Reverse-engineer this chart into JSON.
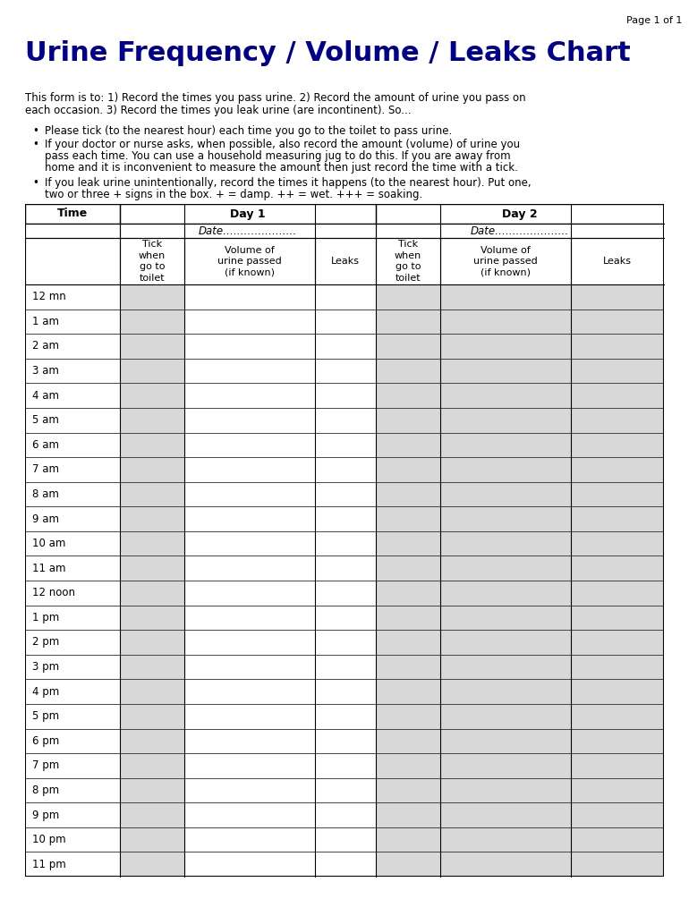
{
  "title": "Urine Frequency / Volume / Leaks Chart",
  "title_color": "#00008B",
  "title_fontsize": 22,
  "page_label": "Page 1 of 1",
  "intro_line1": "This form is to: 1) Record the times you pass urine. 2) Record the amount of urine you pass on",
  "intro_line2": "each occasion. 3) Record the times you leak urine (are incontinent). So...",
  "bullet1": "Please tick (to the nearest hour) each time you go to the toilet to pass urine.",
  "bullet2a": "If your doctor or nurse asks, when possible, also record the amount (volume) of urine you",
  "bullet2b": "pass each time. You can use a household measuring jug to do this. If you are away from",
  "bullet2c": "home and it is inconvenient to measure the amount then just record the time with a tick.",
  "bullet3a": "If you leak urine unintentionally, record the times it happens (to the nearest hour). Put one,",
  "bullet3b": "two or three + signs in the box. + = damp. ++ = wet. +++ = soaking.",
  "time_rows": [
    "12 mn",
    "1 am",
    "2 am",
    "3 am",
    "4 am",
    "5 am",
    "6 am",
    "7 am",
    "8 am",
    "9 am",
    "10 am",
    "11 am",
    "12 noon",
    "1 pm",
    "2 pm",
    "3 pm",
    "4 pm",
    "5 pm",
    "6 pm",
    "7 pm",
    "8 pm",
    "9 pm",
    "10 pm",
    "11 pm"
  ],
  "background_color": "#ffffff",
  "table_bg_shaded": "#d8d8d8",
  "text_color": "#000000",
  "body_fontsize": 8.5,
  "table_fontsize": 8.0,
  "date_label": "Date…………………"
}
